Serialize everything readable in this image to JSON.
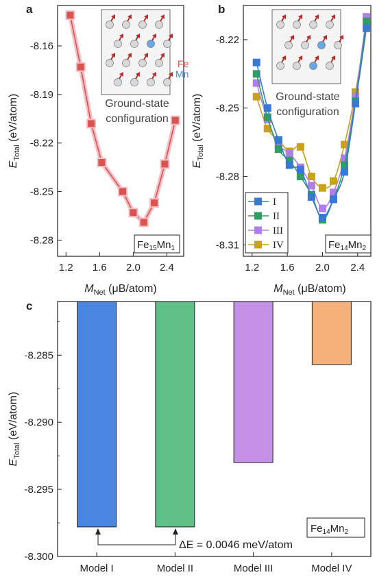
{
  "panels": {
    "a": {
      "letter": "a",
      "inset_caption": [
        "Ground-state",
        "configuration"
      ],
      "element_labels": {
        "fe": "Fe",
        "mn": "Mn"
      },
      "composition": {
        "base": "Fe",
        "base_sub": "15",
        "alloy": "Mn",
        "alloy_sub": "1"
      }
    },
    "b": {
      "letter": "b",
      "inset_caption": [
        "Ground-state",
        "configuration"
      ],
      "composition": {
        "base": "Fe",
        "base_sub": "14",
        "alloy": "Mn",
        "alloy_sub": "2"
      }
    },
    "c": {
      "letter": "c",
      "composition": {
        "base": "Fe",
        "base_sub": "14",
        "alloy": "Mn",
        "alloy_sub": "2"
      },
      "annotation": "ΔE = 0.0046 meV/atom"
    }
  },
  "chart_data": [
    {
      "id": "a",
      "type": "line",
      "xlabel": {
        "main": "M",
        "sub": "Net",
        "units": "(μB/atom)"
      },
      "ylabel": {
        "main": "E",
        "sub": "Total",
        "units": "(eV/atom)"
      },
      "xlim": [
        1.1,
        2.6
      ],
      "ylim": [
        -8.29,
        -8.135
      ],
      "xticks": [
        1.2,
        1.6,
        2.0,
        2.4
      ],
      "xtick_labels": [
        "1.2",
        "1.6",
        "2.0",
        "2.4"
      ],
      "yticks": [
        -8.16,
        -8.19,
        -8.22,
        -8.25,
        -8.28
      ],
      "ytick_labels": [
        "-8.16",
        "-8.19",
        "-8.22",
        "-8.25",
        "-8.28"
      ],
      "series": [
        {
          "color": "#d9534f",
          "x": [
            1.25,
            1.375,
            1.5,
            1.625,
            1.875,
            2.0,
            2.125,
            2.25,
            2.375,
            2.5
          ],
          "y": [
            -8.141,
            -8.173,
            -8.208,
            -8.232,
            -8.25,
            -8.263,
            -8.269,
            -8.257,
            -8.233,
            -8.206
          ]
        }
      ]
    },
    {
      "id": "b",
      "type": "line",
      "xlabel": {
        "main": "M",
        "sub": "Net",
        "units": "(μB/atom)"
      },
      "ylabel": {
        "main": "E",
        "sub": "Total",
        "units": "(eV/atom)"
      },
      "xlim": [
        1.1,
        2.55
      ],
      "ylim": [
        -8.315,
        -8.205
      ],
      "xticks": [
        1.2,
        1.6,
        2.0,
        2.4
      ],
      "xtick_labels": [
        "1.2",
        "1.6",
        "2.0",
        "2.4"
      ],
      "yticks": [
        -8.22,
        -8.25,
        -8.28,
        -8.31
      ],
      "ytick_labels": [
        "-8.22",
        "-8.25",
        "-8.28",
        "-8.31"
      ],
      "legend_position": "bottom-left",
      "series": [
        {
          "name": "I",
          "color": "#3a78d6",
          "x": [
            1.25,
            1.375,
            1.5,
            1.625,
            1.75,
            1.875,
            2.0,
            2.125,
            2.25,
            2.375,
            2.5
          ],
          "y": [
            -8.23,
            -8.25,
            -8.264,
            -8.275,
            -8.277,
            -8.289,
            -8.298,
            -8.29,
            -8.278,
            -8.248,
            -8.215
          ]
        },
        {
          "name": "II",
          "color": "#2f9e62",
          "x": [
            1.25,
            1.375,
            1.5,
            1.625,
            1.75,
            1.875,
            2.0,
            2.125,
            2.25,
            2.375,
            2.5
          ],
          "y": [
            -8.235,
            -8.254,
            -8.268,
            -8.273,
            -8.28,
            -8.288,
            -8.299,
            -8.29,
            -8.275,
            -8.247,
            -8.212
          ]
        },
        {
          "name": "III",
          "color": "#b07ee8",
          "x": [
            1.25,
            1.375,
            1.5,
            1.625,
            1.75,
            1.875,
            2.0,
            2.125,
            2.25,
            2.375,
            2.5
          ],
          "y": [
            -8.239,
            -8.255,
            -8.266,
            -8.27,
            -8.276,
            -8.284,
            -8.294,
            -8.287,
            -8.272,
            -8.245,
            -8.21
          ]
        },
        {
          "name": "IV",
          "color": "#c8a21a",
          "x": [
            1.25,
            1.375,
            1.5,
            1.625,
            1.75,
            1.875,
            2.0,
            2.125,
            2.25,
            2.375,
            2.5
          ],
          "y": [
            -8.245,
            -8.259,
            -8.264,
            -8.269,
            -8.267,
            -8.28,
            -8.285,
            -8.282,
            -8.266,
            -8.243,
            -8.214
          ]
        }
      ]
    },
    {
      "id": "c",
      "type": "bar",
      "categories": [
        "Model I",
        "Model II",
        "Model III",
        "Model IV"
      ],
      "values": [
        -8.2978,
        -8.2978,
        -8.293,
        -8.2857
      ],
      "colors": [
        "#4a86e0",
        "#5fbf86",
        "#c490e8",
        "#f6b07a"
      ],
      "ylabel": {
        "main": "E",
        "sub": "Total",
        "units": "(eV/atom)"
      },
      "ylim": [
        -8.3,
        -8.281
      ],
      "yticks": [
        -8.285,
        -8.29,
        -8.295,
        -8.3
      ],
      "ytick_labels": [
        "-8.285",
        "-8.290",
        "-8.295",
        "-8.300"
      ]
    }
  ]
}
